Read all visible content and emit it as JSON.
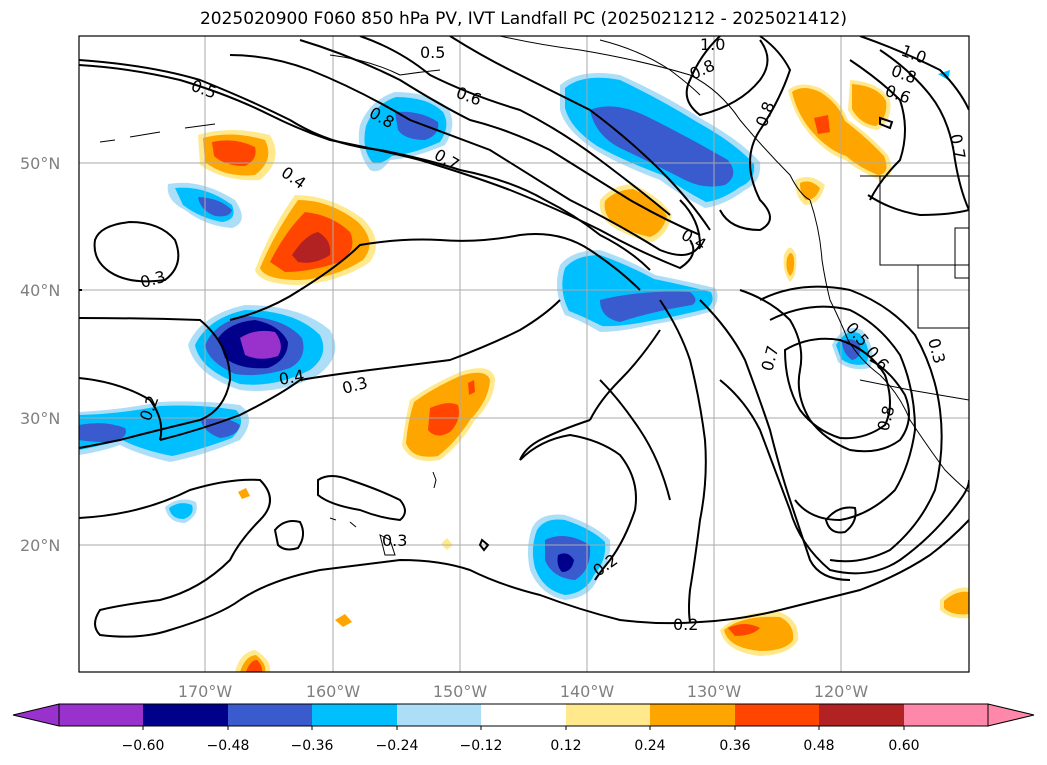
{
  "title": "2025020900 F060 850 hPa PV, IVT Landfall PC (2025021212 - 2025021412)",
  "map": {
    "lon_range": [
      180,
      110
    ],
    "lat_range": [
      10,
      60
    ],
    "lat_ticks": [
      {
        "lat": 50,
        "label": "50°N"
      },
      {
        "lat": 40,
        "label": "40°N"
      },
      {
        "lat": 30,
        "label": "30°N"
      },
      {
        "lat": 20,
        "label": "20°N"
      }
    ],
    "lon_ticks": [
      {
        "lon": 170,
        "label": "170°W"
      },
      {
        "lon": 160,
        "label": "160°W"
      },
      {
        "lon": 150,
        "label": "150°W"
      },
      {
        "lon": 140,
        "label": "140°W"
      },
      {
        "lon": 130,
        "label": "130°W"
      },
      {
        "lon": 120,
        "label": "120°W"
      }
    ],
    "grid": true,
    "contour_labels": [
      "0.5",
      "0.5",
      "0.6",
      "1.0",
      "0.8",
      "1.0",
      "0.8",
      "0.6",
      "0.8",
      "0.7",
      "0.8",
      "0.7",
      "0.4",
      "0.4",
      "0.3",
      "0.4",
      "0.3",
      "0.2",
      "0.3",
      "0.2",
      "0.2",
      "0.5",
      "0.6",
      "0.7",
      "0.8",
      "0.3"
    ]
  },
  "colorbar": {
    "tick_labels": [
      "−0.60",
      "−0.48",
      "−0.36",
      "−0.24",
      "−0.12",
      "0.12",
      "0.24",
      "0.36",
      "0.48",
      "0.60"
    ],
    "colors": [
      "#9932CC",
      "#00008B",
      "#3A5BCD",
      "#00BFFF",
      "#ADDEF8",
      "#FFFFFF",
      "#FFE98C",
      "#FFA500",
      "#FF4500",
      "#B22222",
      "#FF88AA"
    ]
  }
}
